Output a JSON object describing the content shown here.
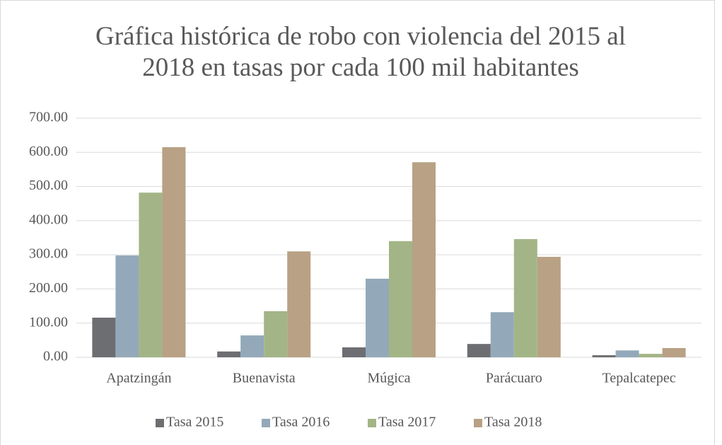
{
  "chart_data": {
    "type": "bar",
    "title": "Gráfica histórica de robo con violencia del 2015 al 2018 en tasas por cada 100 mil habitantes",
    "categories": [
      "Apatzingán",
      "Buenavista",
      "Múgica",
      "Parácuaro",
      "Tepalcatepec"
    ],
    "series": [
      {
        "name": "Tasa 2015",
        "color": "#6d6e72",
        "values": [
          116,
          17,
          29,
          39,
          6
        ]
      },
      {
        "name": "Tasa 2016",
        "color": "#93a9b9",
        "values": [
          298,
          64,
          230,
          132,
          20
        ]
      },
      {
        "name": "Tasa 2017",
        "color": "#a3b586",
        "values": [
          482,
          135,
          340,
          346,
          10
        ]
      },
      {
        "name": "Tasa 2018",
        "color": "#b8a184",
        "values": [
          615,
          310,
          571,
          294,
          27
        ]
      }
    ],
    "ylim": [
      0,
      700
    ],
    "yticks": [
      {
        "value": 0,
        "label": "0.00"
      },
      {
        "value": 100,
        "label": "100.00"
      },
      {
        "value": 200,
        "label": "200.00"
      },
      {
        "value": 300,
        "label": "300.00"
      },
      {
        "value": 400,
        "label": "400.00"
      },
      {
        "value": 500,
        "label": "500.00"
      },
      {
        "value": 600,
        "label": "600.00"
      },
      {
        "value": 700,
        "label": "700.00"
      }
    ],
    "grid": true,
    "legend": "bottom"
  }
}
